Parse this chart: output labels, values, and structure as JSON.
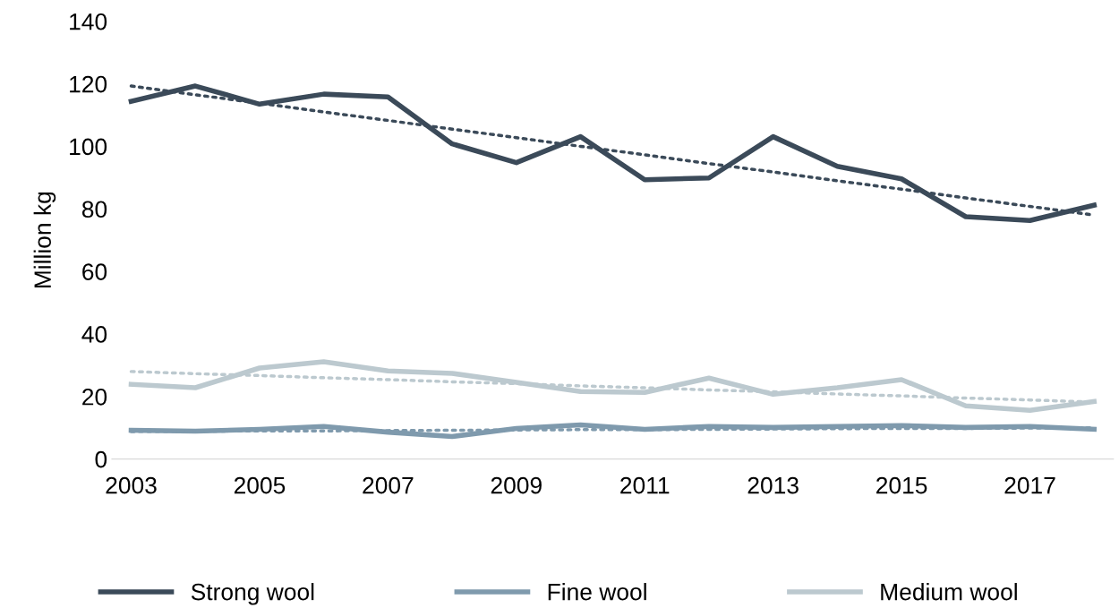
{
  "chart_data": {
    "type": "line",
    "ylabel": "Million kg",
    "x": [
      2003,
      2004,
      2005,
      2006,
      2007,
      2008,
      2009,
      2010,
      2011,
      2012,
      2013,
      2014,
      2015,
      2016,
      2017,
      2018
    ],
    "xlim": [
      2002.7,
      2018.3
    ],
    "xticks": [
      2003,
      2005,
      2007,
      2009,
      2011,
      2013,
      2015,
      2017
    ],
    "ylim": [
      0,
      140
    ],
    "yticks": [
      0,
      20,
      40,
      60,
      80,
      100,
      120,
      140
    ],
    "grid": false,
    "legend": "bottom",
    "marker": "none",
    "series": [
      {
        "name": "Strong wool",
        "color": "#3b4a59",
        "values": [
          114.4,
          119.3,
          113.5,
          116.7,
          115.8,
          100.8,
          94.8,
          103.1,
          89.3,
          89.9,
          103.1,
          93.6,
          89.6,
          77.5,
          76.3,
          81.2
        ]
      },
      {
        "name": "Fine wool",
        "color": "#7f9aad",
        "values": [
          9.2,
          8.9,
          9.5,
          10.4,
          8.6,
          7.2,
          9.8,
          10.9,
          9.5,
          10.4,
          10.1,
          10.4,
          10.7,
          10.1,
          10.4,
          9.5
        ]
      },
      {
        "name": "Medium wool",
        "color": "#bcc9cf",
        "values": [
          23.9,
          22.8,
          29.1,
          31.1,
          28.2,
          27.4,
          24.5,
          21.6,
          21.3,
          25.9,
          20.7,
          22.8,
          25.4,
          17.0,
          15.6,
          18.4
        ]
      },
      {
        "color": "#3b4a59",
        "line_style": "dotted",
        "values": [
          119.3,
          116.5,
          113.8,
          111.0,
          108.3,
          105.5,
          102.8,
          100.0,
          97.3,
          94.5,
          91.8,
          89.0,
          86.3,
          83.5,
          80.8,
          78.0
        ]
      },
      {
        "color": "#7f9aad",
        "line_style": "dotted",
        "values": [
          8.8,
          8.9,
          9.0,
          9.0,
          9.1,
          9.2,
          9.3,
          9.4,
          9.4,
          9.5,
          9.6,
          9.7,
          9.8,
          9.8,
          9.9,
          10.0
        ]
      },
      {
        "color": "#bcc9cf",
        "line_style": "dotted",
        "values": [
          28.0,
          27.3,
          26.7,
          26.0,
          25.4,
          24.7,
          24.1,
          23.4,
          22.8,
          22.1,
          21.5,
          20.8,
          20.2,
          19.5,
          18.9,
          18.2
        ]
      }
    ]
  }
}
